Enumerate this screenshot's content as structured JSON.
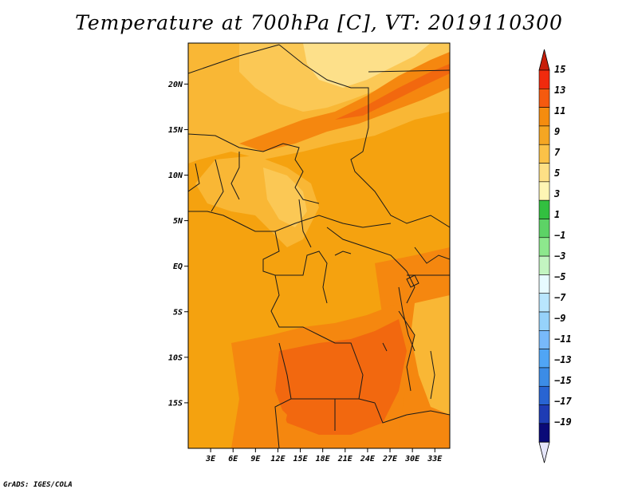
{
  "title": "Temperature at 700hPa [C], VT: 2019110300",
  "footer": "GrADS: IGES/COLA",
  "map": {
    "lat_labels": [
      "20N",
      "15N",
      "10N",
      "5N",
      "EQ",
      "5S",
      "10S",
      "15S"
    ],
    "lat_values": [
      20,
      15,
      10,
      5,
      0,
      -5,
      -10,
      -15
    ],
    "lon_labels": [
      "3E",
      "6E",
      "9E",
      "12E",
      "15E",
      "18E",
      "21E",
      "24E",
      "27E",
      "30E",
      "33E"
    ],
    "lon_values": [
      3,
      6,
      9,
      12,
      15,
      18,
      21,
      24,
      27,
      30,
      33
    ],
    "lon_range": [
      0,
      35
    ],
    "lat_range": [
      -20,
      24.5
    ]
  },
  "colorbar": {
    "labels": [
      "15",
      "13",
      "11",
      "9",
      "7",
      "5",
      "3",
      "1",
      "−1",
      "−3",
      "−5",
      "−7",
      "−9",
      "−11",
      "−13",
      "−15",
      "−17",
      "−19"
    ],
    "colors": {
      "top_arrow": "#c81e0a",
      "bottom_arrow": "#e6e6fa",
      "bins": [
        "#f02a0d",
        "#f55a0f",
        "#f58c0f",
        "#f5a623",
        "#fbc248",
        "#fde086",
        "#fef5b4",
        "#32c040",
        "#5dd366",
        "#8de88d",
        "#c3f5c1",
        "#e7fbff",
        "#b9e6fd",
        "#96d2fa",
        "#78b9fa",
        "#50a5f5",
        "#3c8ce6",
        "#2864d2",
        "#1e3cb4",
        "#0a0a78"
      ]
    }
  },
  "fill_colors": {
    "base": "#f5a20f",
    "warm": "#f5870f",
    "hot": "#f2680f",
    "cool": "#f9b735",
    "cooler": "#fbc855",
    "coolest": "#fde08a"
  }
}
